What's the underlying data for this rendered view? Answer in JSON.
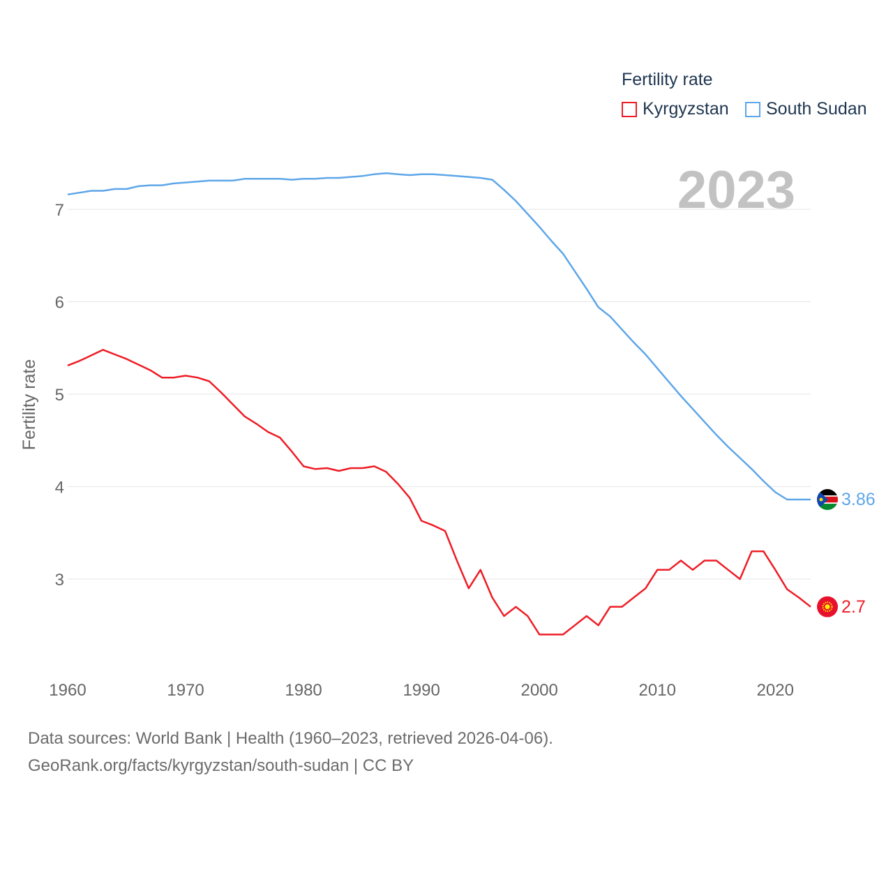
{
  "colors": {
    "kyrgyzstan": "#ee1c25",
    "south_sudan": "#5ea6e8",
    "grid": "#e6e6e6",
    "axis_text": "#666666",
    "year_watermark": "#c2c2c2"
  },
  "legend": {
    "title": "Fertility rate",
    "items": [
      {
        "label": "Kyrgyzstan"
      },
      {
        "label": "South Sudan"
      }
    ]
  },
  "footer": {
    "line1": "Data sources: World Bank | Health (1960–2023, retrieved 2026-04-06).",
    "line2": "GeoRank.org/facts/kyrgyzstan/south-sudan | CC BY"
  },
  "chart_data": {
    "type": "line",
    "title": "Fertility rate",
    "current_year": "2023",
    "xlabel": "",
    "ylabel": "Fertility rate",
    "xlim": [
      1960,
      2023
    ],
    "ylim": [
      2,
      7.5
    ],
    "x_ticks": [
      1960,
      1970,
      1980,
      1990,
      2000,
      2010,
      2020
    ],
    "y_ticks": [
      3,
      4,
      5,
      6,
      7
    ],
    "grid": true,
    "x": [
      1960,
      1961,
      1962,
      1963,
      1964,
      1965,
      1966,
      1967,
      1968,
      1969,
      1970,
      1971,
      1972,
      1973,
      1974,
      1975,
      1976,
      1977,
      1978,
      1979,
      1980,
      1981,
      1982,
      1983,
      1984,
      1985,
      1986,
      1987,
      1988,
      1989,
      1990,
      1991,
      1992,
      1993,
      1994,
      1995,
      1996,
      1997,
      1998,
      1999,
      2000,
      2001,
      2002,
      2003,
      2004,
      2005,
      2006,
      2007,
      2008,
      2009,
      2010,
      2011,
      2012,
      2013,
      2014,
      2015,
      2016,
      2017,
      2018,
      2019,
      2020,
      2021,
      2022,
      2023
    ],
    "series": [
      {
        "name": "Kyrgyzstan",
        "end_label": "2.7",
        "flag_icon": "kyrgyzstan-flag-icon",
        "values": [
          5.31,
          5.36,
          5.42,
          5.48,
          5.43,
          5.38,
          5.32,
          5.26,
          5.18,
          5.18,
          5.2,
          5.18,
          5.14,
          5.02,
          4.89,
          4.76,
          4.68,
          4.59,
          4.53,
          4.38,
          4.22,
          4.19,
          4.2,
          4.17,
          4.2,
          4.2,
          4.22,
          4.16,
          4.03,
          3.88,
          3.63,
          3.58,
          3.52,
          3.2,
          2.9,
          3.1,
          2.8,
          2.6,
          2.7,
          2.6,
          2.4,
          2.4,
          2.4,
          2.5,
          2.6,
          2.5,
          2.7,
          2.7,
          2.8,
          2.9,
          3.1,
          3.1,
          3.2,
          3.1,
          3.2,
          3.2,
          3.1,
          3.0,
          3.3,
          3.3,
          3.1,
          2.89,
          2.8,
          2.7
        ]
      },
      {
        "name": "South Sudan",
        "end_label": "3.86",
        "flag_icon": "south-sudan-flag-icon",
        "values": [
          7.16,
          7.18,
          7.2,
          7.2,
          7.22,
          7.22,
          7.25,
          7.26,
          7.26,
          7.28,
          7.29,
          7.3,
          7.31,
          7.31,
          7.31,
          7.33,
          7.33,
          7.33,
          7.33,
          7.32,
          7.33,
          7.33,
          7.34,
          7.34,
          7.35,
          7.36,
          7.38,
          7.39,
          7.38,
          7.37,
          7.38,
          7.38,
          7.37,
          7.36,
          7.35,
          7.34,
          7.32,
          7.21,
          7.09,
          6.95,
          6.81,
          6.66,
          6.52,
          6.33,
          6.14,
          5.94,
          5.84,
          5.7,
          5.56,
          5.43,
          5.28,
          5.13,
          4.98,
          4.84,
          4.7,
          4.56,
          4.43,
          4.31,
          4.19,
          4.06,
          3.94,
          3.86,
          3.86,
          3.86
        ]
      }
    ]
  }
}
